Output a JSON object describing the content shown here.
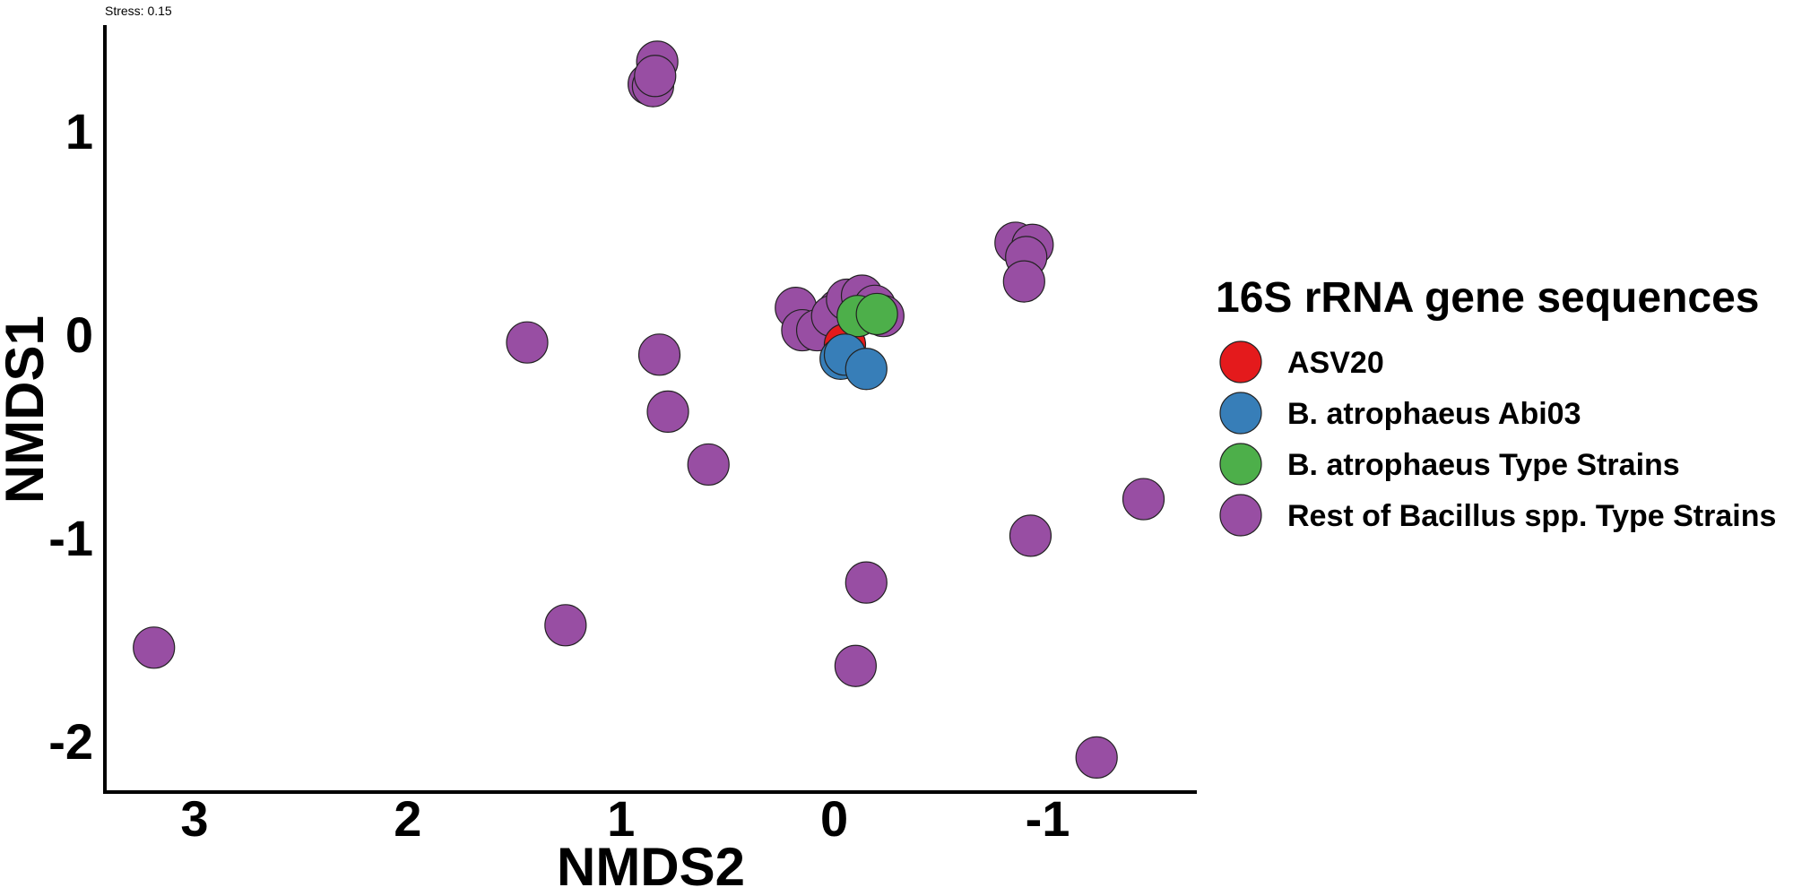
{
  "chart_data": {
    "type": "scatter",
    "subtitle": "Stress: 0.15",
    "xlabel": "NMDS2",
    "ylabel": "NMDS1",
    "x_reversed": true,
    "xlim": [
      3.42,
      -1.7
    ],
    "ylim": [
      -2.25,
      1.52
    ],
    "x_ticks": [
      3,
      2,
      1,
      0,
      -1
    ],
    "x_tick_labels": [
      "3",
      "2",
      "1",
      "0",
      "-1"
    ],
    "y_ticks": [
      1,
      0,
      -1,
      -2
    ],
    "y_tick_labels": [
      "1",
      "0",
      "-1",
      "-2"
    ],
    "grid": false,
    "legend": {
      "title": "16S rRNA gene sequences",
      "placement": "right"
    },
    "series": [
      {
        "name": "Rest of Bacillus spp. Type Strains",
        "color": "#984EA3",
        "points": [
          [
            3.19,
            -1.54
          ],
          [
            1.44,
            -0.04
          ],
          [
            1.26,
            -1.43
          ],
          [
            0.82,
            -0.1
          ],
          [
            0.78,
            -0.38
          ],
          [
            0.59,
            -0.64
          ],
          [
            0.83,
            1.34
          ],
          [
            0.87,
            1.23
          ],
          [
            0.85,
            1.22
          ],
          [
            0.84,
            1.27
          ],
          [
            0.18,
            0.13
          ],
          [
            0.15,
            0.02
          ],
          [
            0.08,
            0.02
          ],
          [
            -0.02,
            0.12
          ],
          [
            0.01,
            0.09
          ],
          [
            -0.06,
            0.17
          ],
          [
            -0.13,
            0.19
          ],
          [
            -0.19,
            0.14
          ],
          [
            -0.23,
            0.09
          ],
          [
            -0.15,
            -1.22
          ],
          [
            -0.1,
            -1.63
          ],
          [
            -0.85,
            0.45
          ],
          [
            -0.93,
            0.44
          ],
          [
            -0.9,
            0.38
          ],
          [
            -0.89,
            0.26
          ],
          [
            -0.92,
            -0.99
          ],
          [
            -1.23,
            -2.08
          ],
          [
            -1.45,
            -0.81
          ]
        ]
      },
      {
        "name": "ASV20",
        "color": "#E41A1C",
        "points": [
          [
            -0.05,
            -0.05
          ]
        ]
      },
      {
        "name": "B. atrophaeus Type Strains",
        "color": "#4DAF4A",
        "points": [
          [
            -0.11,
            0.09
          ],
          [
            -0.2,
            0.1
          ]
        ]
      },
      {
        "name": "B. atrophaeus Abi03",
        "color": "#377EB8",
        "points": [
          [
            -0.03,
            -0.12
          ],
          [
            -0.05,
            -0.1
          ],
          [
            -0.15,
            -0.17
          ]
        ]
      }
    ],
    "legend_order": [
      "ASV20",
      "B. atrophaeus Abi03",
      "B. atrophaeus Type Strains",
      "Rest of Bacillus spp. Type Strains"
    ]
  }
}
